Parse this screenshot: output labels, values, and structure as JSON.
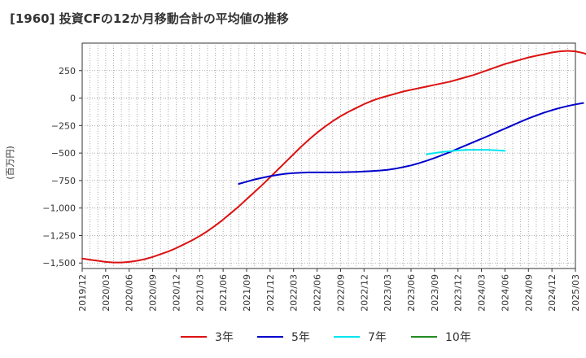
{
  "title": "[1960]  投資CFの12か月移動合計の平均値の推移",
  "chart_data": {
    "type": "line",
    "ylabel": "(百万円)",
    "ylim": [
      -1550,
      500
    ],
    "yticks": [
      250,
      0,
      -250,
      -500,
      -750,
      -1000,
      -1250,
      -1500
    ],
    "ytick_labels": [
      "250",
      "0",
      "−250",
      "−500",
      "−750",
      "−1,000",
      "−1,250",
      "−1,500"
    ],
    "x_start": "2019/12",
    "x_end": "2025/03",
    "xtick_labels": [
      "2019/12",
      "2020/03",
      "2020/06",
      "2020/09",
      "2020/12",
      "2021/03",
      "2021/06",
      "2021/09",
      "2021/12",
      "2022/03",
      "2022/06",
      "2022/09",
      "2022/12",
      "2023/03",
      "2023/06",
      "2023/09",
      "2023/12",
      "2024/03",
      "2024/06",
      "2024/09",
      "2024/12",
      "2025/03"
    ],
    "grid": true,
    "legend_position": "bottom",
    "series": [
      {
        "name": "3年",
        "color": "#dd1111",
        "start": "2019/12",
        "values": [
          -1460,
          -1470,
          -1480,
          -1490,
          -1495,
          -1495,
          -1490,
          -1480,
          -1465,
          -1445,
          -1420,
          -1395,
          -1365,
          -1330,
          -1295,
          -1255,
          -1210,
          -1160,
          -1105,
          -1045,
          -985,
          -920,
          -855,
          -790,
          -720,
          -650,
          -580,
          -510,
          -440,
          -375,
          -315,
          -260,
          -210,
          -165,
          -125,
          -90,
          -55,
          -25,
          0,
          20,
          40,
          60,
          75,
          90,
          105,
          120,
          135,
          150,
          170,
          190,
          210,
          235,
          260,
          285,
          310,
          330,
          350,
          370,
          385,
          400,
          415,
          425,
          430,
          425,
          410,
          385,
          350,
          305,
          260
        ]
      },
      {
        "name": "5年",
        "color": "#0000cc",
        "start": "2021/08",
        "values": [
          -780,
          -760,
          -740,
          -725,
          -710,
          -698,
          -688,
          -682,
          -678,
          -676,
          -676,
          -676,
          -676,
          -675,
          -673,
          -671,
          -668,
          -664,
          -659,
          -652,
          -642,
          -628,
          -612,
          -592,
          -570,
          -545,
          -518,
          -490,
          -460,
          -430,
          -400,
          -370,
          -340,
          -308,
          -278,
          -246,
          -215,
          -185,
          -158,
          -132,
          -110,
          -90,
          -72,
          -57,
          -45
        ]
      },
      {
        "name": "7年",
        "color": "#00e5ee",
        "start": "2023/08",
        "values": [
          -510,
          -500,
          -490,
          -482,
          -476,
          -472,
          -470,
          -470,
          -472,
          -475,
          -480
        ]
      },
      {
        "name": "10年",
        "color": "#228b22",
        "start": "2024/03",
        "values": []
      }
    ]
  }
}
